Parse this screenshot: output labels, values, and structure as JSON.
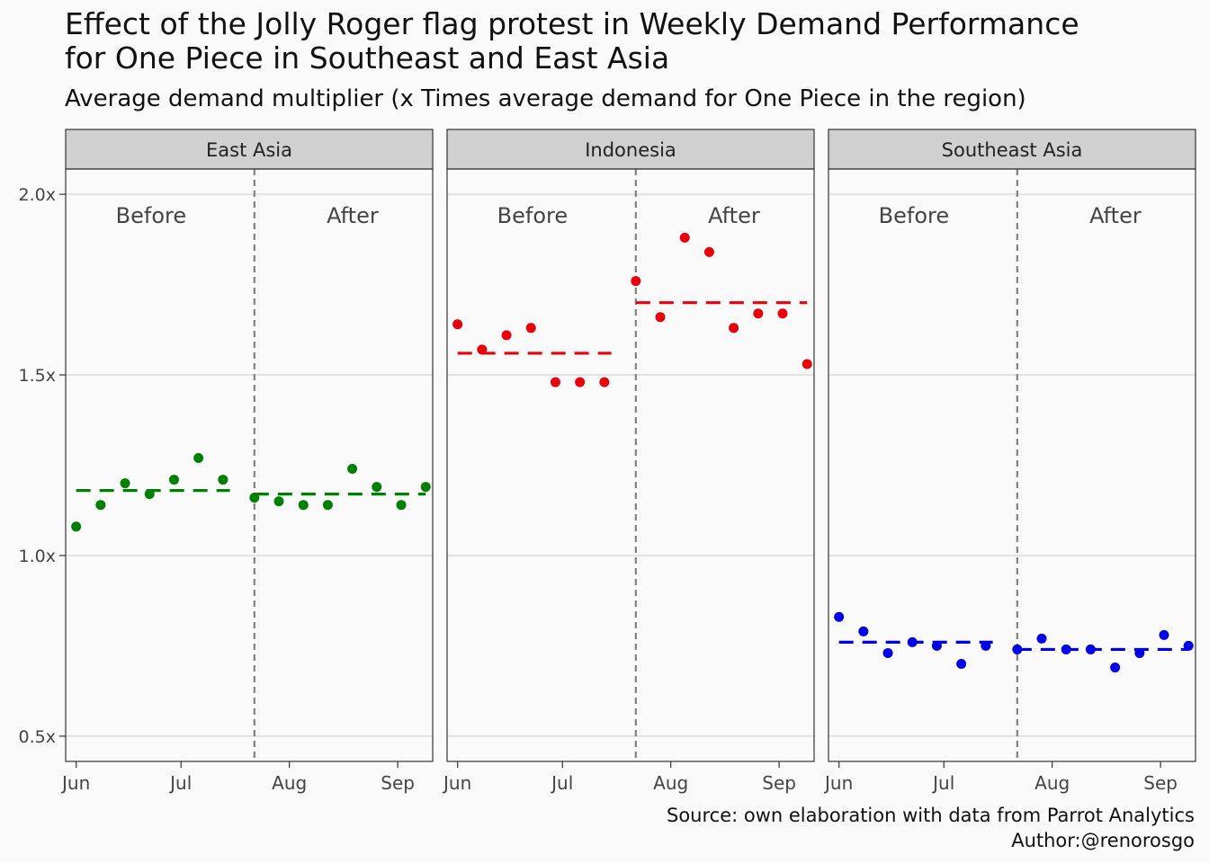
{
  "title": "Effect of the Jolly Roger flag protest in Weekly Demand Performance",
  "title_line2": "for One Piece in Southeast and East Asia",
  "subtitle": "Average demand multiplier (x Times average demand for One Piece in the region)",
  "caption": {
    "source": "Source: own elaboration with data from Parrot Analytics",
    "author": "Author:@renorosgo"
  },
  "chart_data": {
    "type": "scatter",
    "x_ticks": [
      "Jun",
      "Jul",
      "Aug",
      "Sep"
    ],
    "y_ticks": [
      "0.5x",
      "1.0x",
      "1.5x",
      "2.0x"
    ],
    "y_tick_values": [
      0.5,
      1.0,
      1.5,
      2.0
    ],
    "ylim": [
      0.43,
      2.07
    ],
    "xlim": [
      "2025-05-29",
      "2025-09-11"
    ],
    "grid": true,
    "cutoff_date": "2025-07-22",
    "period_labels": {
      "before": "Before",
      "after": "After"
    },
    "colors": {
      "East Asia": "#008000",
      "Indonesia": "#e8000b",
      "Southeast Asia": "#0000e6",
      "cutoff": "#808080"
    },
    "dates": [
      "2025-06-01",
      "2025-06-08",
      "2025-06-15",
      "2025-06-22",
      "2025-06-29",
      "2025-07-06",
      "2025-07-13",
      "2025-07-22",
      "2025-07-29",
      "2025-08-05",
      "2025-08-12",
      "2025-08-19",
      "2025-08-26",
      "2025-09-02",
      "2025-09-09"
    ],
    "facets": [
      {
        "name": "East Asia",
        "values": [
          1.08,
          1.14,
          1.2,
          1.17,
          1.21,
          1.27,
          1.21,
          1.16,
          1.15,
          1.14,
          1.14,
          1.24,
          1.19,
          1.14,
          1.19
        ],
        "mean_before": 1.18,
        "mean_after": 1.17
      },
      {
        "name": "Indonesia",
        "values": [
          1.64,
          1.57,
          1.61,
          1.63,
          1.48,
          1.48,
          1.48,
          1.76,
          1.66,
          1.88,
          1.84,
          1.63,
          1.67,
          1.67,
          1.53
        ],
        "mean_before": 1.56,
        "mean_after": 1.7
      },
      {
        "name": "Southeast Asia",
        "values": [
          0.83,
          0.79,
          0.73,
          0.76,
          0.75,
          0.7,
          0.75,
          0.74,
          0.77,
          0.74,
          0.74,
          0.69,
          0.73,
          0.78,
          0.75
        ],
        "mean_before": 0.76,
        "mean_after": 0.74
      }
    ]
  }
}
